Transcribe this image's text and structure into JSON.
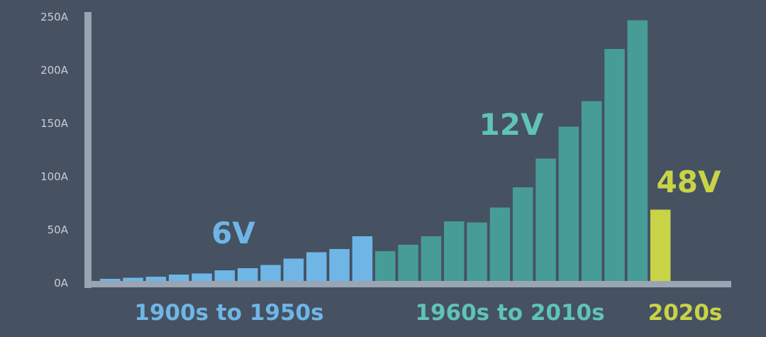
{
  "chart_data": {
    "type": "bar",
    "y_ticks": [
      "0A",
      "50A",
      "100A",
      "150A",
      "200A",
      "250A"
    ],
    "ylim": [
      0,
      250
    ],
    "grid": false,
    "segments": [
      {
        "voltage": "6V",
        "era": "1900s to 1950s",
        "color": "#6fb6e6",
        "values": [
          4,
          5,
          6,
          8,
          9,
          12,
          14,
          17,
          23,
          29,
          32,
          44
        ]
      },
      {
        "voltage": "12V",
        "era": "1960s to 2010s",
        "color": "#479c98",
        "values": [
          30,
          36,
          44,
          58,
          57,
          71,
          90,
          117,
          147,
          171,
          220,
          247
        ]
      },
      {
        "voltage": "48V",
        "era": "2020s",
        "color": "#c8d446",
        "values": [
          69
        ]
      }
    ],
    "label_colors": {
      "voltage": [
        "#6fb6e6",
        "#5fc4b6",
        "#c8d446"
      ],
      "era": [
        "#6fb6e6",
        "#5fc4b6",
        "#c8d446"
      ]
    }
  }
}
